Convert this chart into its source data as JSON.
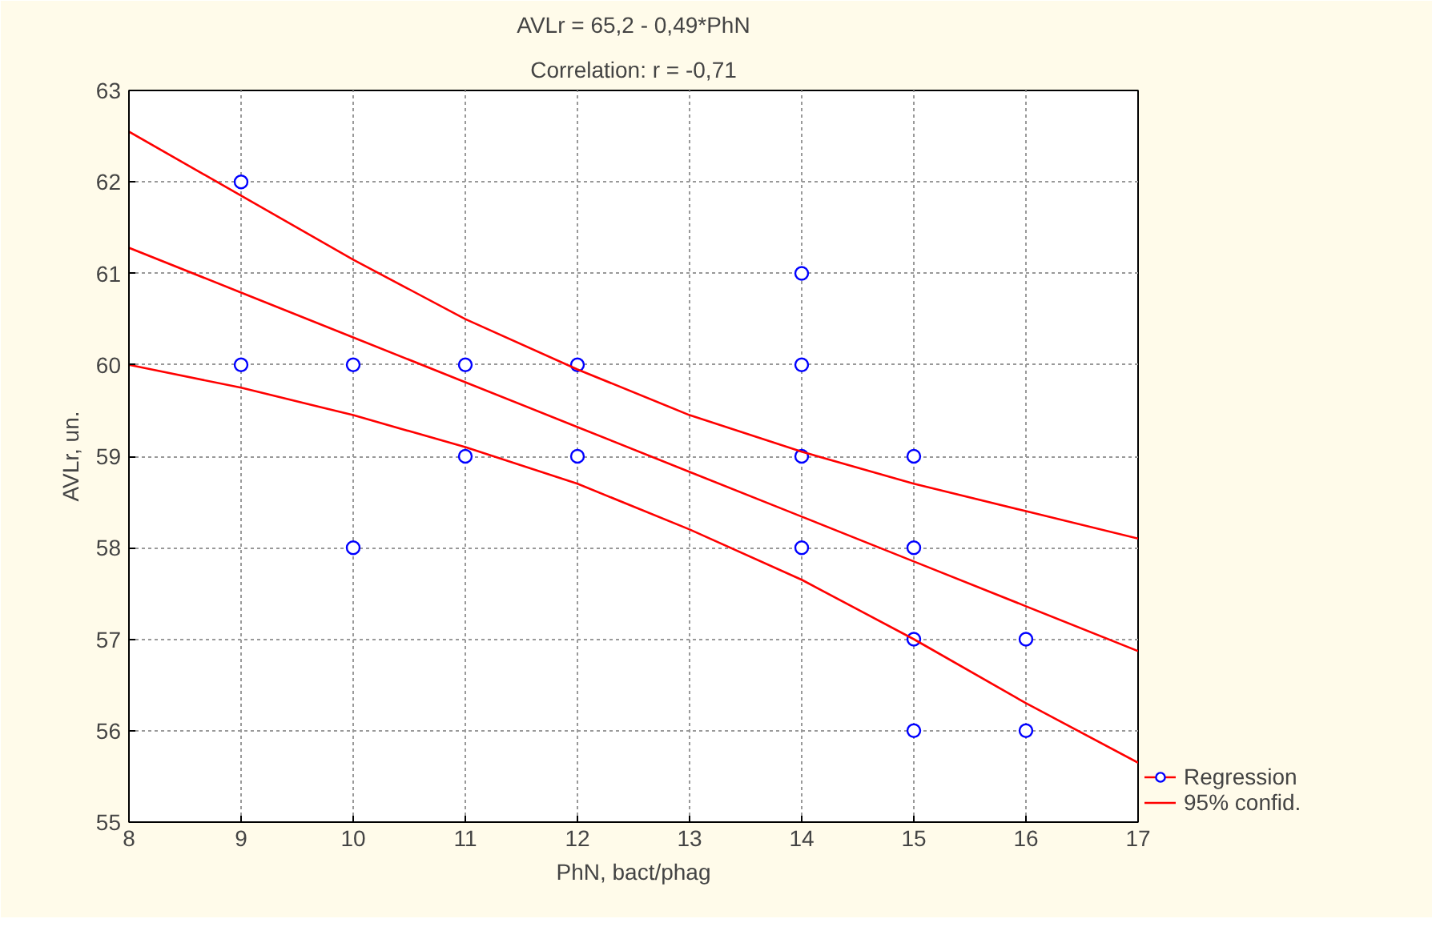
{
  "chart_data": {
    "type": "scatter",
    "title": "AVLr = 65,2 - 0,49*PhN",
    "subtitle": "Correlation: r = -0,71",
    "xlabel": "PhN, bact/phag",
    "ylabel": "AVLr, un.",
    "xlim": [
      8,
      17
    ],
    "xticks": [
      8,
      9,
      10,
      11,
      12,
      13,
      14,
      15,
      16,
      17
    ],
    "ylim": [
      55,
      63
    ],
    "yticks": [
      55,
      56,
      57,
      58,
      59,
      60,
      61,
      62,
      63
    ],
    "grid": true,
    "legend": "right",
    "marker": "circle",
    "series": [
      {
        "name": "Regression",
        "color": "#0000ff",
        "x": [
          9,
          9,
          10,
          10,
          11,
          11,
          12,
          12,
          14,
          14,
          14,
          14,
          15,
          15,
          15,
          15,
          16,
          16
        ],
        "values": [
          62,
          60,
          60,
          58,
          60,
          59,
          60,
          59,
          61,
          60,
          59,
          58,
          59,
          58,
          57,
          56,
          57,
          56
        ]
      },
      {
        "type": "line",
        "color": "#ff0000",
        "marker": "none",
        "x": [
          8,
          9,
          10,
          11,
          12,
          13,
          14,
          15,
          16,
          17
        ],
        "values": [
          61.28,
          60.79,
          60.3,
          59.81,
          59.32,
          58.83,
          58.34,
          57.85,
          57.36,
          56.87
        ]
      },
      {
        "name": "95% confid.",
        "type": "line",
        "color": "#ff0000",
        "marker": "none",
        "x": [
          8,
          9,
          10,
          11,
          12,
          13,
          14,
          15,
          16,
          17
        ],
        "values": [
          62.55,
          61.85,
          61.15,
          60.5,
          59.95,
          59.45,
          59.05,
          58.7,
          58.4,
          58.1
        ]
      },
      {
        "type": "line",
        "color": "#ff0000",
        "marker": "none",
        "x": [
          8,
          9,
          10,
          11,
          12,
          13,
          14,
          15,
          16,
          17
        ],
        "values": [
          60.0,
          59.75,
          59.45,
          59.1,
          58.7,
          58.2,
          57.65,
          57.0,
          56.3,
          55.65
        ]
      }
    ]
  }
}
